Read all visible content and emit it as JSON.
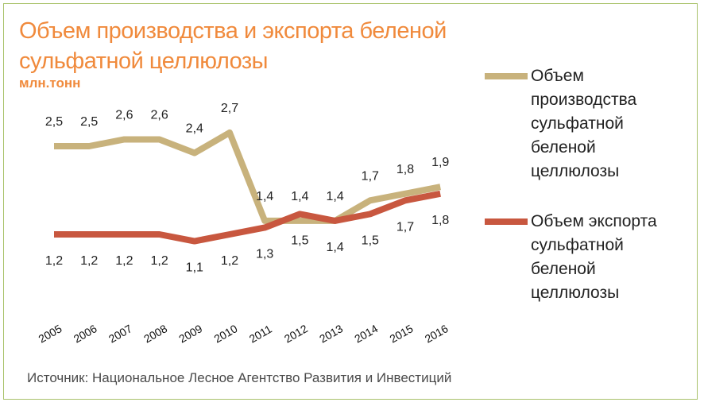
{
  "chart_data": {
    "type": "line",
    "title": "Объем производства и экспорта беленой сульфатной целлюлозы",
    "subtitle": "млн.тонн",
    "categories": [
      "2005",
      "2006",
      "2007",
      "2008",
      "2009",
      "2010",
      "2011",
      "2012",
      "2013",
      "2014",
      "2015",
      "2016"
    ],
    "series": [
      {
        "name": "Объем производства сульфатной беленой целлюлозы",
        "legend_lines": [
          "Объем",
          "производства",
          "сульфатной",
          "беленой",
          "целлюлозы"
        ],
        "color": "#c8b27c",
        "values": [
          2.5,
          2.5,
          2.6,
          2.6,
          2.4,
          2.7,
          1.4,
          1.4,
          1.4,
          1.7,
          1.8,
          1.9
        ],
        "labels": [
          "2,5",
          "2,5",
          "2,6",
          "2,6",
          "2,4",
          "2,7",
          "1,4",
          "1,4",
          "1,4",
          "1,7",
          "1,8",
          "1,9"
        ]
      },
      {
        "name": "Объем экспорта сульфатной беленой целлюлозы",
        "legend_lines": [
          "Объем экспорта",
          "сульфатной",
          "беленой",
          "целлюлозы"
        ],
        "color": "#c8573f",
        "values": [
          1.2,
          1.2,
          1.2,
          1.2,
          1.1,
          1.2,
          1.3,
          1.5,
          1.4,
          1.5,
          1.7,
          1.8
        ],
        "labels": [
          "1,2",
          "1,2",
          "1,2",
          "1,2",
          "1,1",
          "1,2",
          "1,3",
          "1,5",
          "1,4",
          "1,5",
          "1,7",
          "1,8"
        ]
      }
    ],
    "legend_position": "right",
    "grid": false
  },
  "source": "Источник: Национальное Лесное Агентство Развития и Инвестиций",
  "colors": {
    "title": "#f08a3c",
    "frame": "#a9c26a"
  }
}
